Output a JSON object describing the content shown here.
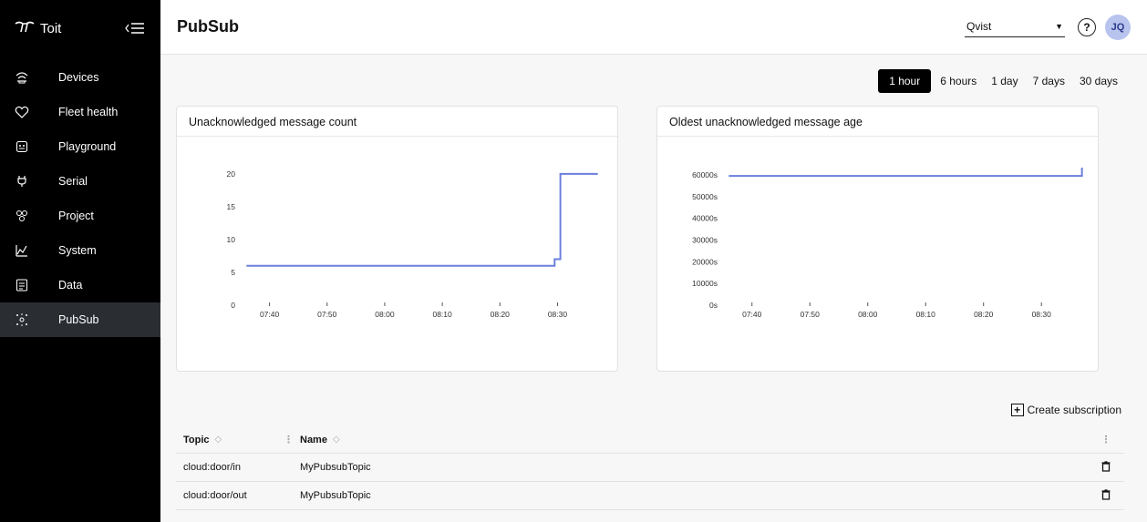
{
  "app": {
    "brand": "Toit",
    "logo_glyph": "π̷"
  },
  "sidebar": {
    "items": [
      {
        "label": "Devices",
        "icon": "devices-icon",
        "active": false
      },
      {
        "label": "Fleet health",
        "icon": "heart-icon",
        "active": false
      },
      {
        "label": "Playground",
        "icon": "playground-icon",
        "active": false
      },
      {
        "label": "Serial",
        "icon": "plug-icon",
        "active": false
      },
      {
        "label": "Project",
        "icon": "project-icon",
        "active": false
      },
      {
        "label": "System",
        "icon": "chart-line-icon",
        "active": false
      },
      {
        "label": "Data",
        "icon": "data-icon",
        "active": false
      },
      {
        "label": "PubSub",
        "icon": "pubsub-icon",
        "active": true
      }
    ]
  },
  "header": {
    "title": "PubSub",
    "org": "Qvist",
    "avatar_initials": "JQ",
    "help": "?"
  },
  "ranges": [
    {
      "label": "1 hour",
      "active": true
    },
    {
      "label": "6 hours",
      "active": false
    },
    {
      "label": "1 day",
      "active": false
    },
    {
      "label": "7 days",
      "active": false
    },
    {
      "label": "30 days",
      "active": false
    }
  ],
  "chart_data": [
    {
      "type": "line",
      "title": "Unacknowledged message count",
      "x_ticks": [
        "07:40",
        "07:50",
        "08:00",
        "08:10",
        "08:20",
        "08:30"
      ],
      "y_ticks": [
        "0",
        "5",
        "10",
        "15",
        "20"
      ],
      "ylim": [
        0,
        21.5
      ],
      "xlim": [
        "07:35",
        "08:38"
      ],
      "series": [
        {
          "x": [
            "07:36",
            "08:29",
            "08:29.5",
            "08:30",
            "08:30.5",
            "08:37"
          ],
          "y": [
            6,
            6,
            7,
            7,
            20,
            20
          ],
          "step": true
        }
      ],
      "color": "#6b7fdc"
    },
    {
      "type": "line",
      "title": "Oldest unacknowledged message age",
      "x_ticks": [
        "07:40",
        "07:50",
        "08:00",
        "08:10",
        "08:20",
        "08:30"
      ],
      "y_ticks": [
        "0s",
        "10000s",
        "20000s",
        "30000s",
        "40000s",
        "50000s",
        "60000s"
      ],
      "ylim": [
        0,
        65000
      ],
      "xlim": [
        "07:35",
        "08:38"
      ],
      "series": [
        {
          "x": [
            "07:36",
            "08:37"
          ],
          "y": [
            59500,
            63300
          ],
          "step": true
        }
      ],
      "color": "#6b7fdc"
    }
  ],
  "actions": {
    "create_subscription": "Create subscription"
  },
  "table": {
    "columns": [
      {
        "label": "Topic"
      },
      {
        "label": "Name"
      }
    ],
    "rows": [
      {
        "topic": "cloud:door/in",
        "name": "MyPubsubTopic"
      },
      {
        "topic": "cloud:door/out",
        "name": "MyPubsubTopic"
      }
    ]
  }
}
